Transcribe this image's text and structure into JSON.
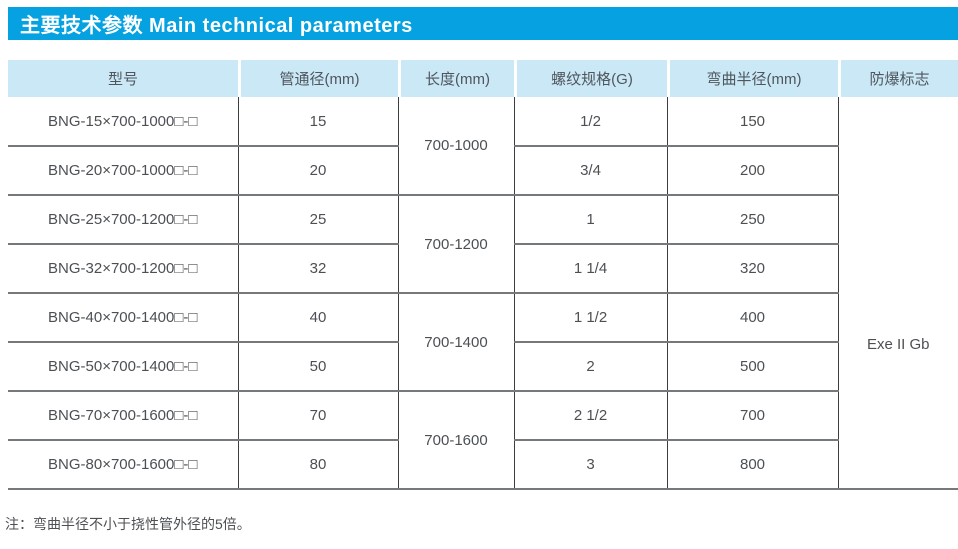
{
  "title": {
    "text": "主要技术参数 Main technical parameters"
  },
  "table": {
    "headers": [
      "型号",
      "管通径(mm)",
      "长度(mm)",
      "螺纹规格(G)",
      "弯曲半径(mm)",
      "防爆标志"
    ],
    "rows": [
      {
        "model": "BNG-15×700-1000□-□",
        "diameter": "15",
        "length": "700-1000",
        "length_span": 2,
        "thread": "1/2",
        "radius": "150"
      },
      {
        "model": "BNG-20×700-1000□-□",
        "diameter": "20",
        "thread": "3/4",
        "radius": "200"
      },
      {
        "model": "BNG-25×700-1200□-□",
        "diameter": "25",
        "length": "700-1200",
        "length_span": 2,
        "thread": "1",
        "radius": "250"
      },
      {
        "model": "BNG-32×700-1200□-□",
        "diameter": "32",
        "thread": "1 1/4",
        "radius": "320"
      },
      {
        "model": "BNG-40×700-1400□-□",
        "diameter": "40",
        "length": "700-1400",
        "length_span": 2,
        "thread": "1 1/2",
        "radius": "400"
      },
      {
        "model": "BNG-50×700-1400□-□",
        "diameter": "50",
        "thread": "2",
        "radius": "500"
      },
      {
        "model": "BNG-70×700-1600□-□",
        "diameter": "70",
        "length": "700-1600",
        "length_span": 2,
        "thread": "2 1/2",
        "radius": "700"
      },
      {
        "model": "BNG-80×700-1600□-□",
        "diameter": "80",
        "thread": "3",
        "radius": "800"
      }
    ],
    "explosion_mark": {
      "label": "Exe II Gb",
      "row_span": 8
    }
  },
  "note": {
    "text": "注：弯曲半径不小于挠性管外径的5倍。"
  },
  "colors": {
    "title_bar": "#05a1e1",
    "header_cell": "#cbe8f7",
    "text": "#4c5054",
    "border_horizontal": "#75797c",
    "border_vertical": "#3a3e41"
  }
}
